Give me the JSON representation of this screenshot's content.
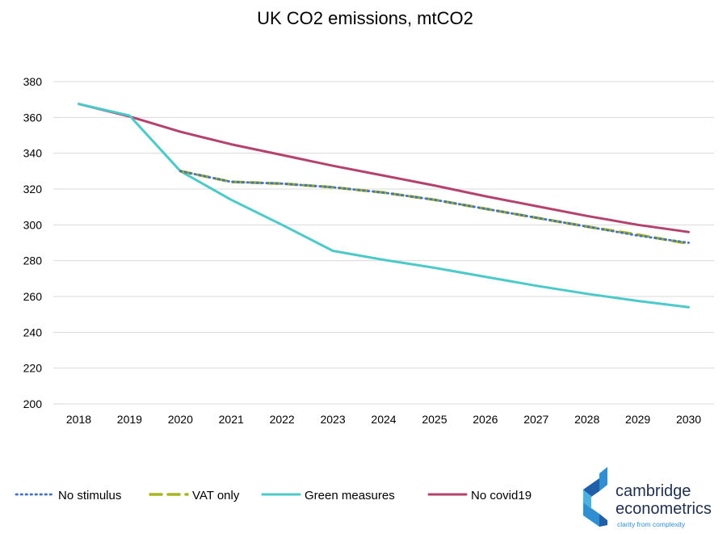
{
  "chart_data": {
    "type": "line",
    "title": "UK CO2 emissions, mtCO2",
    "xlabel": "",
    "ylabel": "",
    "categories": [
      "2018",
      "2019",
      "2020",
      "2021",
      "2022",
      "2023",
      "2024",
      "2025",
      "2026",
      "2027",
      "2028",
      "2029",
      "2030"
    ],
    "ylim": [
      200,
      380
    ],
    "yticks": [
      200,
      220,
      240,
      260,
      280,
      300,
      320,
      340,
      360,
      380
    ],
    "grid": true,
    "legend_position": "bottom-left",
    "series": [
      {
        "name": "No stimulus",
        "color": "#4472c4",
        "style": "dotted",
        "values": [
          367.5,
          361,
          330,
          324,
          323,
          321,
          318,
          314,
          309,
          304,
          299,
          294,
          290
        ]
      },
      {
        "name": "VAT only",
        "color": "#a9b51c",
        "style": "dashed",
        "values": [
          367.5,
          361,
          330,
          324,
          323,
          321,
          318,
          314,
          309,
          304,
          299,
          294.5,
          289.5
        ]
      },
      {
        "name": "Green measures",
        "color": "#4cc9c9",
        "style": "solid",
        "values": [
          367.5,
          361,
          330,
          314,
          300,
          285.5,
          280.5,
          276,
          271,
          266,
          261.5,
          257.5,
          254
        ]
      },
      {
        "name": "No covid19",
        "color": "#b5426e",
        "style": "solid",
        "values": [
          367.5,
          360.5,
          352,
          345,
          339,
          333,
          327.5,
          322,
          316,
          310.5,
          305,
          300,
          296
        ]
      }
    ]
  },
  "logo": {
    "line1": "cambridge",
    "line2": "econometrics",
    "tagline": "clarity from complexity"
  }
}
